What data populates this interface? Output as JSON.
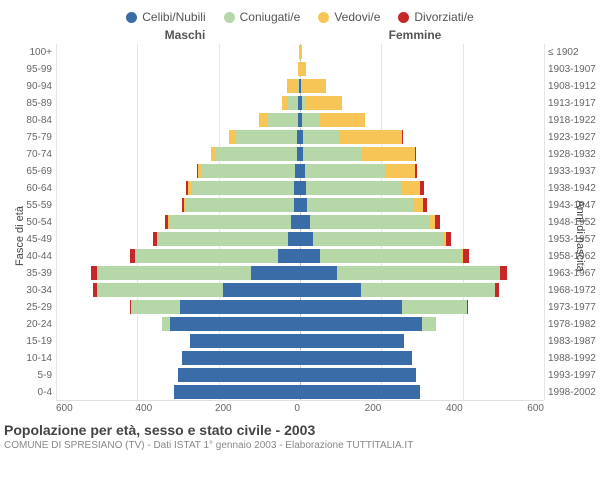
{
  "legend": {
    "items": [
      {
        "label": "Celibi/Nubili",
        "color": "#3a6da8"
      },
      {
        "label": "Coniugati/e",
        "color": "#b6d7a8"
      },
      {
        "label": "Vedovi/e",
        "color": "#f6c556"
      },
      {
        "label": "Divorziati/e",
        "color": "#c62828"
      }
    ]
  },
  "headers": {
    "left": "Maschi",
    "right": "Femmine"
  },
  "axis_left_title": "Fasce di età",
  "axis_right_title": "Anni di nascita",
  "title": "Popolazione per età, sesso e stato civile - 2003",
  "subtitle": "COMUNE DI SPRESIANO (TV) - Dati ISTAT 1° gennaio 2003 - Elaborazione TUTTITALIA.IT",
  "xmax": 600,
  "xticks": [
    600,
    400,
    200,
    0,
    200,
    400,
    600
  ],
  "colors": {
    "single": "#3a6da8",
    "married": "#b6d7a8",
    "widowed": "#f6c556",
    "divorced": "#c62828",
    "grid": "#e6e6e6",
    "center": "#bbbbbb"
  },
  "rows": [
    {
      "age": "100+",
      "birth": "≤ 1902",
      "m": [
        0,
        0,
        3,
        0
      ],
      "f": [
        0,
        0,
        5,
        0
      ]
    },
    {
      "age": "95-99",
      "birth": "1903-1907",
      "m": [
        0,
        0,
        4,
        0
      ],
      "f": [
        0,
        0,
        15,
        0
      ]
    },
    {
      "age": "90-94",
      "birth": "1908-1912",
      "m": [
        3,
        3,
        25,
        0
      ],
      "f": [
        3,
        0,
        60,
        0
      ]
    },
    {
      "age": "85-89",
      "birth": "1913-1917",
      "m": [
        5,
        25,
        15,
        0
      ],
      "f": [
        5,
        8,
        90,
        0
      ]
    },
    {
      "age": "80-84",
      "birth": "1918-1922",
      "m": [
        6,
        75,
        20,
        0
      ],
      "f": [
        6,
        40,
        115,
        0
      ]
    },
    {
      "age": "75-79",
      "birth": "1923-1927",
      "m": [
        7,
        150,
        18,
        0
      ],
      "f": [
        7,
        90,
        155,
        2
      ]
    },
    {
      "age": "70-74",
      "birth": "1928-1932",
      "m": [
        8,
        200,
        12,
        0
      ],
      "f": [
        8,
        145,
        130,
        2
      ]
    },
    {
      "age": "65-69",
      "birth": "1933-1937",
      "m": [
        12,
        230,
        9,
        3
      ],
      "f": [
        12,
        200,
        70,
        6
      ]
    },
    {
      "age": "60-64",
      "birth": "1938-1942",
      "m": [
        14,
        255,
        6,
        6
      ],
      "f": [
        14,
        235,
        45,
        10
      ]
    },
    {
      "age": "55-59",
      "birth": "1943-1947",
      "m": [
        16,
        265,
        4,
        6
      ],
      "f": [
        18,
        260,
        25,
        9
      ]
    },
    {
      "age": "50-54",
      "birth": "1948-1952",
      "m": [
        22,
        300,
        2,
        8
      ],
      "f": [
        25,
        295,
        12,
        12
      ]
    },
    {
      "age": "45-49",
      "birth": "1953-1957",
      "m": [
        30,
        320,
        2,
        10
      ],
      "f": [
        32,
        320,
        6,
        14
      ]
    },
    {
      "age": "40-44",
      "birth": "1958-1962",
      "m": [
        55,
        350,
        0,
        12
      ],
      "f": [
        48,
        350,
        3,
        15
      ]
    },
    {
      "age": "35-39",
      "birth": "1963-1967",
      "m": [
        120,
        380,
        0,
        14
      ],
      "f": [
        90,
        400,
        2,
        18
      ]
    },
    {
      "age": "30-34",
      "birth": "1968-1972",
      "m": [
        190,
        310,
        0,
        8
      ],
      "f": [
        150,
        330,
        0,
        10
      ]
    },
    {
      "age": "25-29",
      "birth": "1973-1977",
      "m": [
        295,
        120,
        0,
        2
      ],
      "f": [
        250,
        160,
        0,
        4
      ]
    },
    {
      "age": "20-24",
      "birth": "1978-1982",
      "m": [
        320,
        20,
        0,
        0
      ],
      "f": [
        300,
        35,
        0,
        0
      ]
    },
    {
      "age": "15-19",
      "birth": "1983-1987",
      "m": [
        270,
        0,
        0,
        0
      ],
      "f": [
        255,
        0,
        0,
        0
      ]
    },
    {
      "age": "10-14",
      "birth": "1988-1992",
      "m": [
        290,
        0,
        0,
        0
      ],
      "f": [
        275,
        0,
        0,
        0
      ]
    },
    {
      "age": "5-9",
      "birth": "1993-1997",
      "m": [
        300,
        0,
        0,
        0
      ],
      "f": [
        285,
        0,
        0,
        0
      ]
    },
    {
      "age": "0-4",
      "birth": "1998-2002",
      "m": [
        310,
        0,
        0,
        0
      ],
      "f": [
        295,
        0,
        0,
        0
      ]
    }
  ]
}
